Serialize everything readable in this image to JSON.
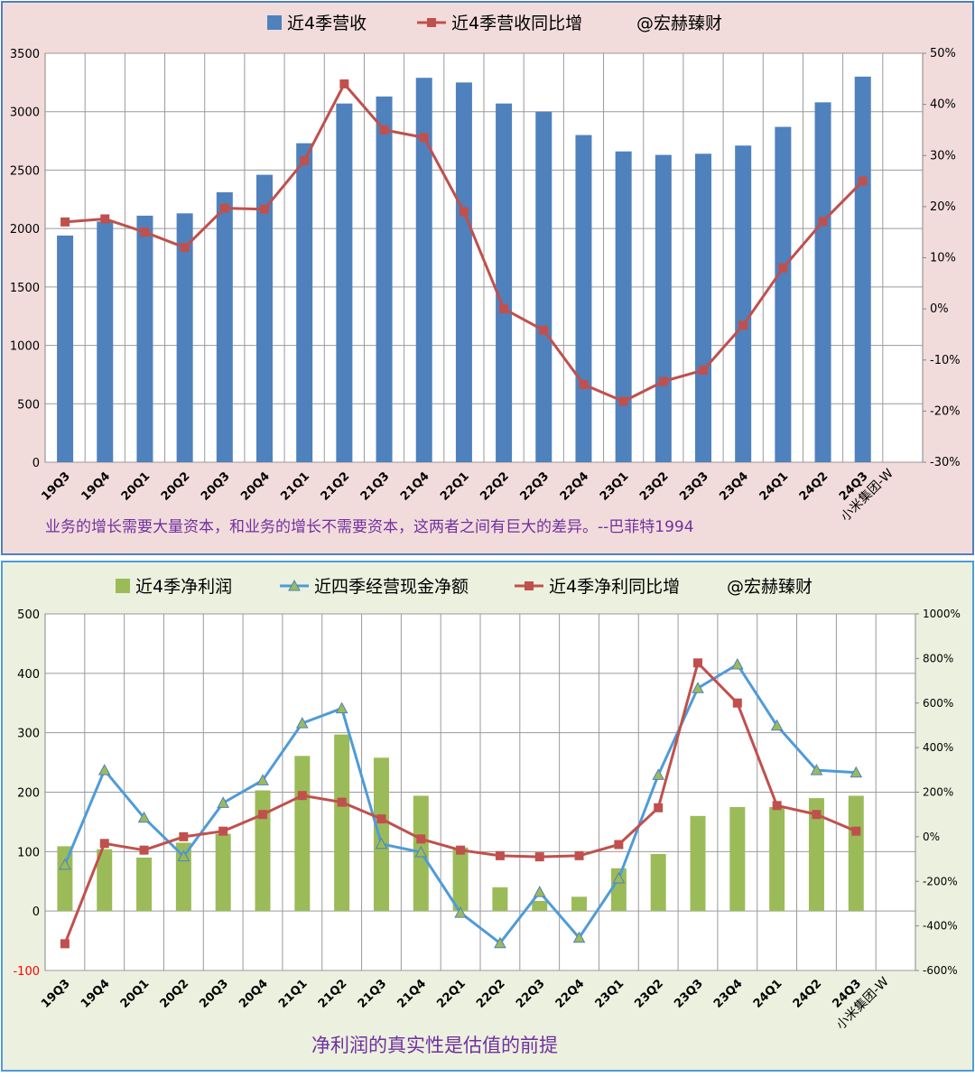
{
  "chart_data": [
    {
      "type": "bar",
      "title": "",
      "categories": [
        "19Q3",
        "19Q4",
        "20Q1",
        "20Q2",
        "20Q3",
        "20Q4",
        "21Q1",
        "21Q2",
        "21Q3",
        "21Q4",
        "22Q1",
        "22Q2",
        "22Q3",
        "22Q4",
        "23Q1",
        "23Q2",
        "23Q3",
        "23Q4",
        "24Q1",
        "24Q2",
        "24Q3"
      ],
      "series": [
        {
          "name": "近4季营收",
          "kind": "bar",
          "axis": "left",
          "color": "#4F81BD",
          "values": [
            1940,
            2060,
            2110,
            2130,
            2310,
            2460,
            2730,
            3070,
            3130,
            3290,
            3250,
            3070,
            3000,
            2800,
            2660,
            2630,
            2640,
            2710,
            2870,
            3080,
            3300
          ]
        },
        {
          "name": "近4季营收同比增",
          "kind": "line",
          "axis": "right",
          "color": "#C0504D",
          "marker": "square",
          "values": [
            17,
            17.6,
            15,
            12,
            19.7,
            19.5,
            29,
            44,
            35,
            33.5,
            19,
            0,
            -4.2,
            -14.8,
            -18.1,
            -14.2,
            -12,
            -3.2,
            8,
            17.1,
            25
          ]
        }
      ],
      "legend": [
        "近4季营收",
        "近4季营收同比增",
        "@宏赫臻财"
      ],
      "ylim_left": [
        0,
        3500
      ],
      "yticks_left": [
        "0",
        "500",
        "1000",
        "1500",
        "2000",
        "2500",
        "3000",
        "3500"
      ],
      "ylim_right": [
        -30,
        50
      ],
      "yticks_right": [
        "-30%",
        "-20%",
        "-10%",
        "0%",
        "10%",
        "20%",
        "30%",
        "40%",
        "50%"
      ],
      "company": "小米集团-W",
      "quote": "业务的增长需要大量资本，和业务的增长不需要资本，这两者之间有巨大的差异。--巴菲特1994",
      "bg": "#F2DCDB"
    },
    {
      "type": "bar",
      "title": "",
      "categories": [
        "19Q3",
        "19Q4",
        "20Q1",
        "20Q2",
        "20Q3",
        "20Q4",
        "21Q1",
        "21Q2",
        "21Q3",
        "21Q4",
        "22Q1",
        "22Q2",
        "22Q3",
        "22Q4",
        "23Q1",
        "23Q2",
        "23Q3",
        "23Q4",
        "24Q1",
        "24Q2",
        "24Q3"
      ],
      "series": [
        {
          "name": "近4季净利润",
          "kind": "bar",
          "axis": "left",
          "color": "#9BBB59",
          "values": [
            109,
            104,
            90,
            115,
            130,
            203,
            261,
            297,
            258,
            194,
            107,
            40,
            17,
            24,
            72,
            96,
            160,
            175,
            175,
            190,
            194
          ]
        },
        {
          "name": "近四季经营现金净额",
          "kind": "line",
          "axis": "left",
          "color": "#4F9BD9",
          "marker": "triangle",
          "values": [
            78,
            237,
            157,
            92,
            182,
            220,
            316,
            341,
            113,
            99,
            -3,
            -54,
            32,
            -45,
            55,
            229,
            375,
            415,
            312,
            237,
            233
          ]
        },
        {
          "name": "近4季净利同比增",
          "kind": "line",
          "axis": "right",
          "color": "#C0504D",
          "marker": "square",
          "values": [
            -480,
            -30,
            -60,
            0,
            25,
            100,
            185,
            155,
            80,
            -10,
            -60,
            -85,
            -90,
            -85,
            -35,
            130,
            780,
            600,
            140,
            100,
            25
          ]
        }
      ],
      "legend": [
        "近4季净利润",
        "近四季经营现金净额",
        "近4季净利同比增",
        "@宏赫臻财"
      ],
      "ylim_left": [
        -100,
        500
      ],
      "yticks_left": [
        "-100",
        "0",
        "100",
        "200",
        "300",
        "400",
        "500"
      ],
      "ylim_right": [
        -600,
        1000
      ],
      "yticks_right": [
        "-600%",
        "-400%",
        "-200%",
        "0%",
        "200%",
        "400%",
        "600%",
        "800%",
        "1000%"
      ],
      "company": "小米集团-W",
      "quote": "净利润的真实性是估值的前提",
      "bg": "#EBF1DE"
    }
  ]
}
